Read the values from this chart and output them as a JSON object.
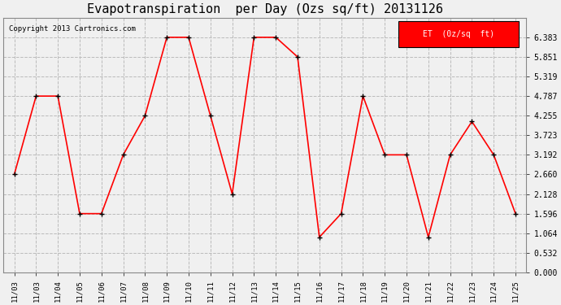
{
  "title": "Evapotranspiration  per Day (Ozs sq/ft) 20131126",
  "copyright": "Copyright 2013 Cartronics.com",
  "legend_label": "ET  (0z/sq  ft)",
  "x_labels": [
    "11/03",
    "11/03",
    "11/04",
    "11/05",
    "11/06",
    "11/07",
    "11/08",
    "11/09",
    "11/10",
    "11/11",
    "11/12",
    "11/13",
    "11/14",
    "11/15",
    "11/16",
    "11/17",
    "11/18",
    "11/19",
    "11/20",
    "11/21",
    "11/22",
    "11/23",
    "11/24",
    "11/25"
  ],
  "values": [
    2.66,
    4.787,
    4.787,
    1.596,
    1.596,
    3.192,
    4.255,
    6.383,
    6.383,
    4.255,
    2.128,
    6.383,
    6.383,
    5.851,
    0.957,
    1.596,
    4.787,
    3.192,
    3.192,
    0.957,
    3.192,
    4.096,
    3.192,
    1.596
  ],
  "line_color": "red",
  "marker_color": "black",
  "bg_color": "#f0f0f0",
  "grid_color": "#bbbbbb",
  "ylim": [
    0.0,
    6.916
  ],
  "yticks": [
    0.0,
    0.532,
    1.064,
    1.596,
    2.128,
    2.66,
    3.192,
    3.723,
    4.255,
    4.787,
    5.319,
    5.851,
    6.383
  ],
  "title_fontsize": 11,
  "copyright_fontsize": 6.5,
  "tick_fontsize": 6.5,
  "ytick_fontsize": 7,
  "legend_bg": "red",
  "legend_fg": "white",
  "legend_fontsize": 7
}
